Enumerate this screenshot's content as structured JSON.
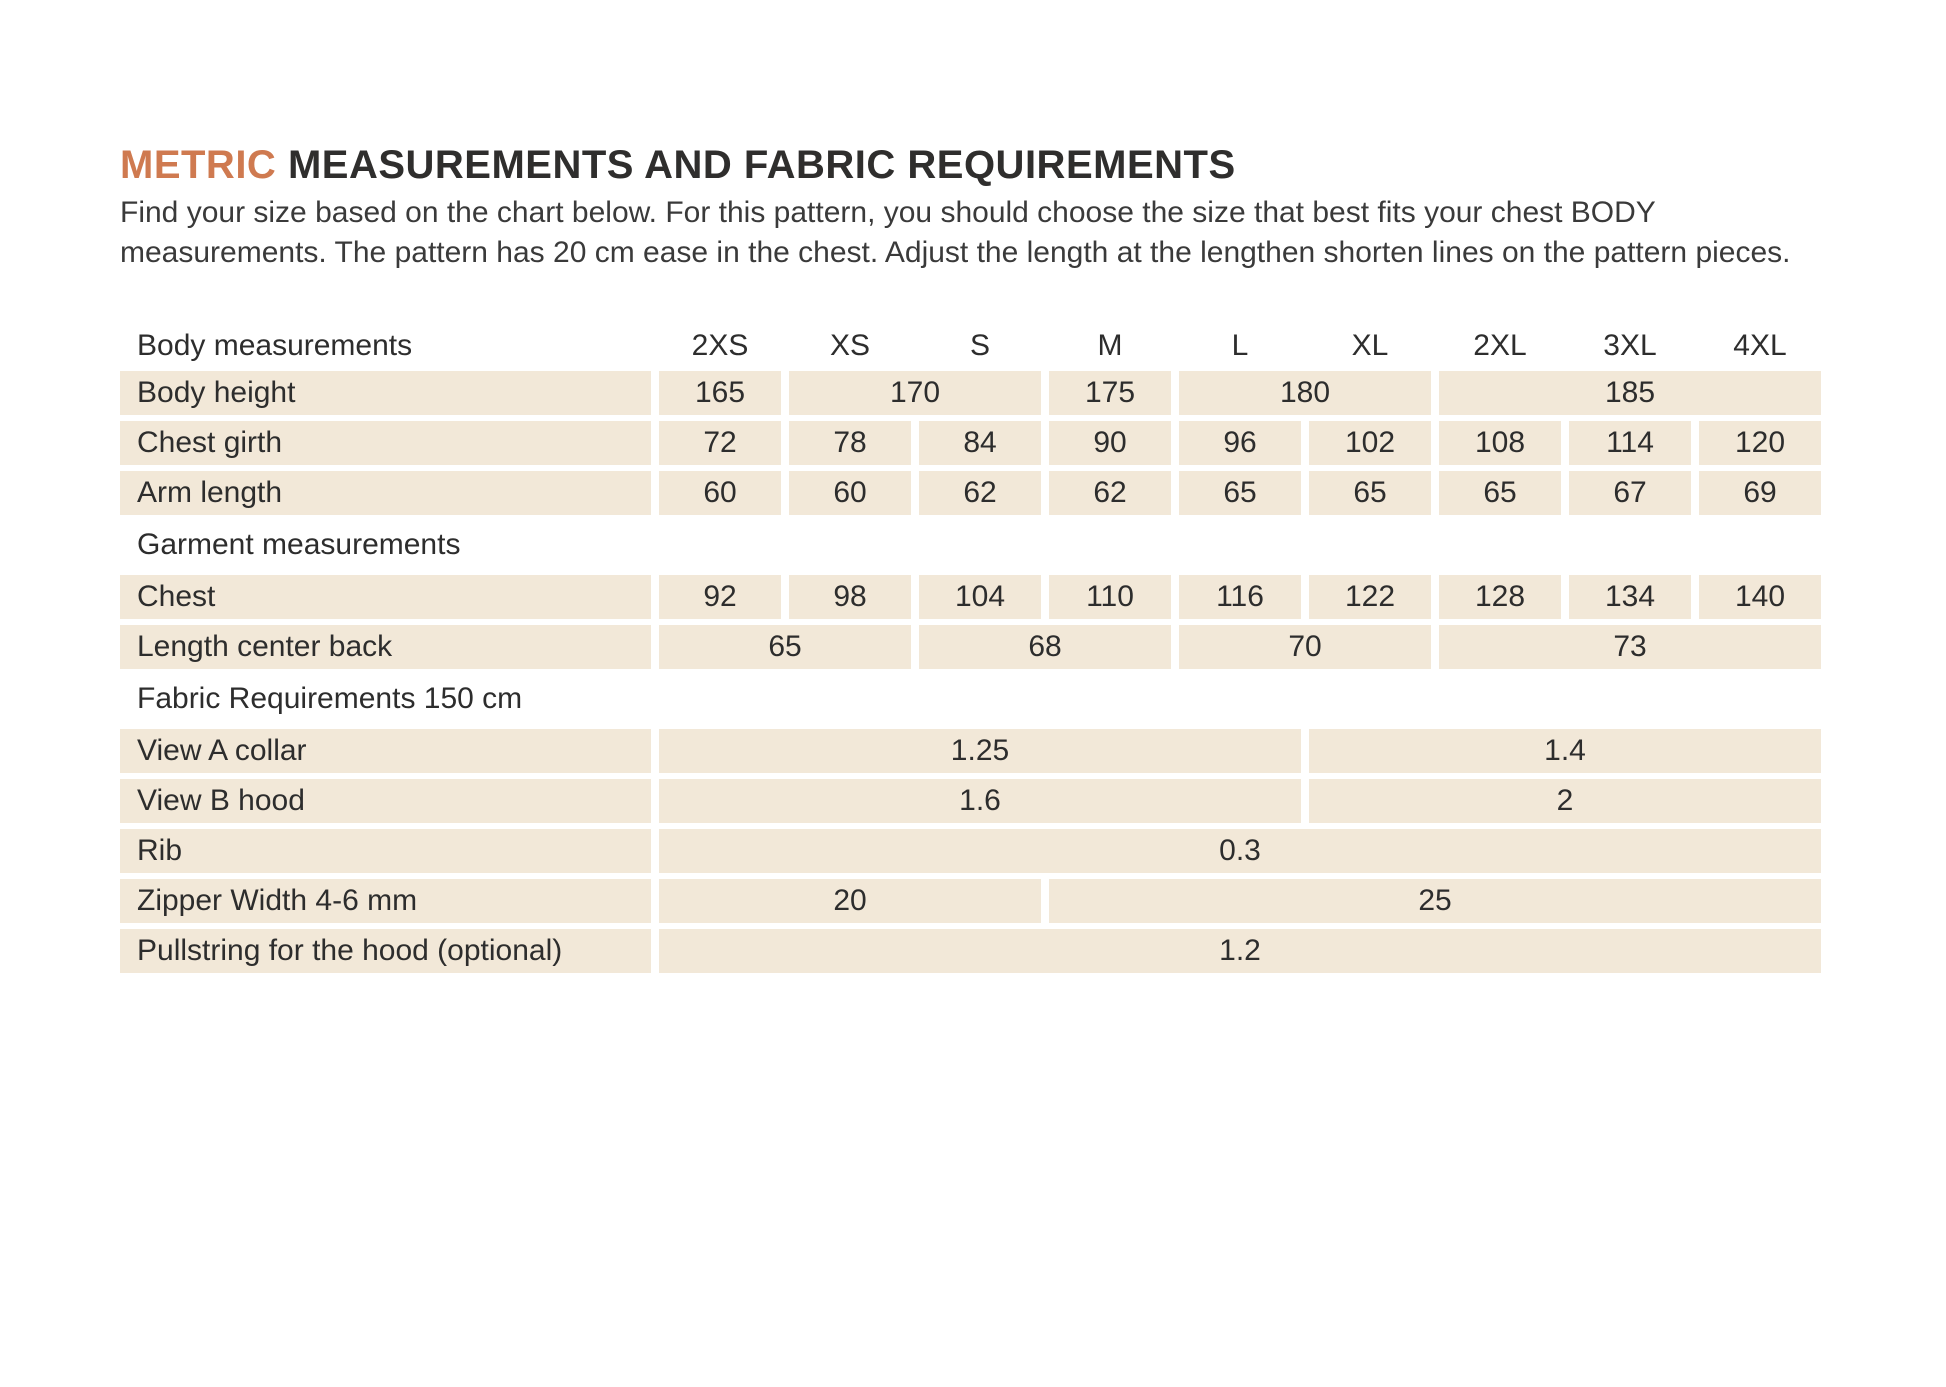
{
  "title": {
    "highlight": "METRIC",
    "rest": "MEASUREMENTS AND FABRIC REQUIREMENTS"
  },
  "intro": "Find your size based on the chart below. For this pattern, you should choose the size that best fits your chest BODY measurements. The pattern has 20 cm ease in the chest. Adjust the length at the lengthen shorten lines on the pattern pieces.",
  "colors": {
    "accent": "#cf7a50",
    "heading": "#2f2e2d",
    "body_text": "#3a3a3a",
    "table_text": "#2d2d2d",
    "cell_background": "#f2e8d8"
  },
  "table": {
    "header_label": "Body measurements",
    "sizes": [
      "2XS",
      "XS",
      "S",
      "M",
      "L",
      "XL",
      "2XL",
      "3XL",
      "4XL"
    ],
    "rows": [
      {
        "type": "data",
        "label": "Body height",
        "cells": [
          {
            "value": "165",
            "span": 1
          },
          {
            "value": "170",
            "span": 2
          },
          {
            "value": "175",
            "span": 1
          },
          {
            "value": "180",
            "span": 2
          },
          {
            "value": "185",
            "span": 3
          }
        ]
      },
      {
        "type": "data",
        "label": "Chest girth",
        "cells": [
          {
            "value": "72",
            "span": 1
          },
          {
            "value": "78",
            "span": 1
          },
          {
            "value": "84",
            "span": 1
          },
          {
            "value": "90",
            "span": 1
          },
          {
            "value": "96",
            "span": 1
          },
          {
            "value": "102",
            "span": 1
          },
          {
            "value": "108",
            "span": 1
          },
          {
            "value": "114",
            "span": 1
          },
          {
            "value": "120",
            "span": 1
          }
        ]
      },
      {
        "type": "data",
        "label": "Arm length",
        "cells": [
          {
            "value": "60",
            "span": 1
          },
          {
            "value": "60",
            "span": 1
          },
          {
            "value": "62",
            "span": 1
          },
          {
            "value": "62",
            "span": 1
          },
          {
            "value": "65",
            "span": 1
          },
          {
            "value": "65",
            "span": 1
          },
          {
            "value": "65",
            "span": 1
          },
          {
            "value": "67",
            "span": 1
          },
          {
            "value": "69",
            "span": 1
          }
        ]
      },
      {
        "type": "section",
        "label": "Garment measurements"
      },
      {
        "type": "data",
        "label": "Chest",
        "cells": [
          {
            "value": "92",
            "span": 1
          },
          {
            "value": "98",
            "span": 1
          },
          {
            "value": "104",
            "span": 1
          },
          {
            "value": "110",
            "span": 1
          },
          {
            "value": "116",
            "span": 1
          },
          {
            "value": "122",
            "span": 1
          },
          {
            "value": "128",
            "span": 1
          },
          {
            "value": "134",
            "span": 1
          },
          {
            "value": "140",
            "span": 1
          }
        ]
      },
      {
        "type": "data",
        "label": "Length center back",
        "cells": [
          {
            "value": "65",
            "span": 2
          },
          {
            "value": "68",
            "span": 2
          },
          {
            "value": "70",
            "span": 2
          },
          {
            "value": "73",
            "span": 3
          }
        ]
      },
      {
        "type": "section",
        "label": "Fabric Requirements 150 cm"
      },
      {
        "type": "data",
        "label": "View A collar",
        "cells": [
          {
            "value": "1.25",
            "span": 5
          },
          {
            "value": "1.4",
            "span": 4
          }
        ]
      },
      {
        "type": "data",
        "label": "View B hood",
        "cells": [
          {
            "value": "1.6",
            "span": 5
          },
          {
            "value": "2",
            "span": 4
          }
        ]
      },
      {
        "type": "data",
        "label": "Rib",
        "cells": [
          {
            "value": "0.3",
            "span": 9
          }
        ]
      },
      {
        "type": "data",
        "label": "Zipper Width 4-6 mm",
        "cells": [
          {
            "value": "20",
            "span": 3
          },
          {
            "value": "25",
            "span": 6
          }
        ]
      },
      {
        "type": "data",
        "label": "Pullstring for the hood (optional)",
        "cells": [
          {
            "value": "1.2",
            "span": 9
          }
        ]
      }
    ]
  }
}
